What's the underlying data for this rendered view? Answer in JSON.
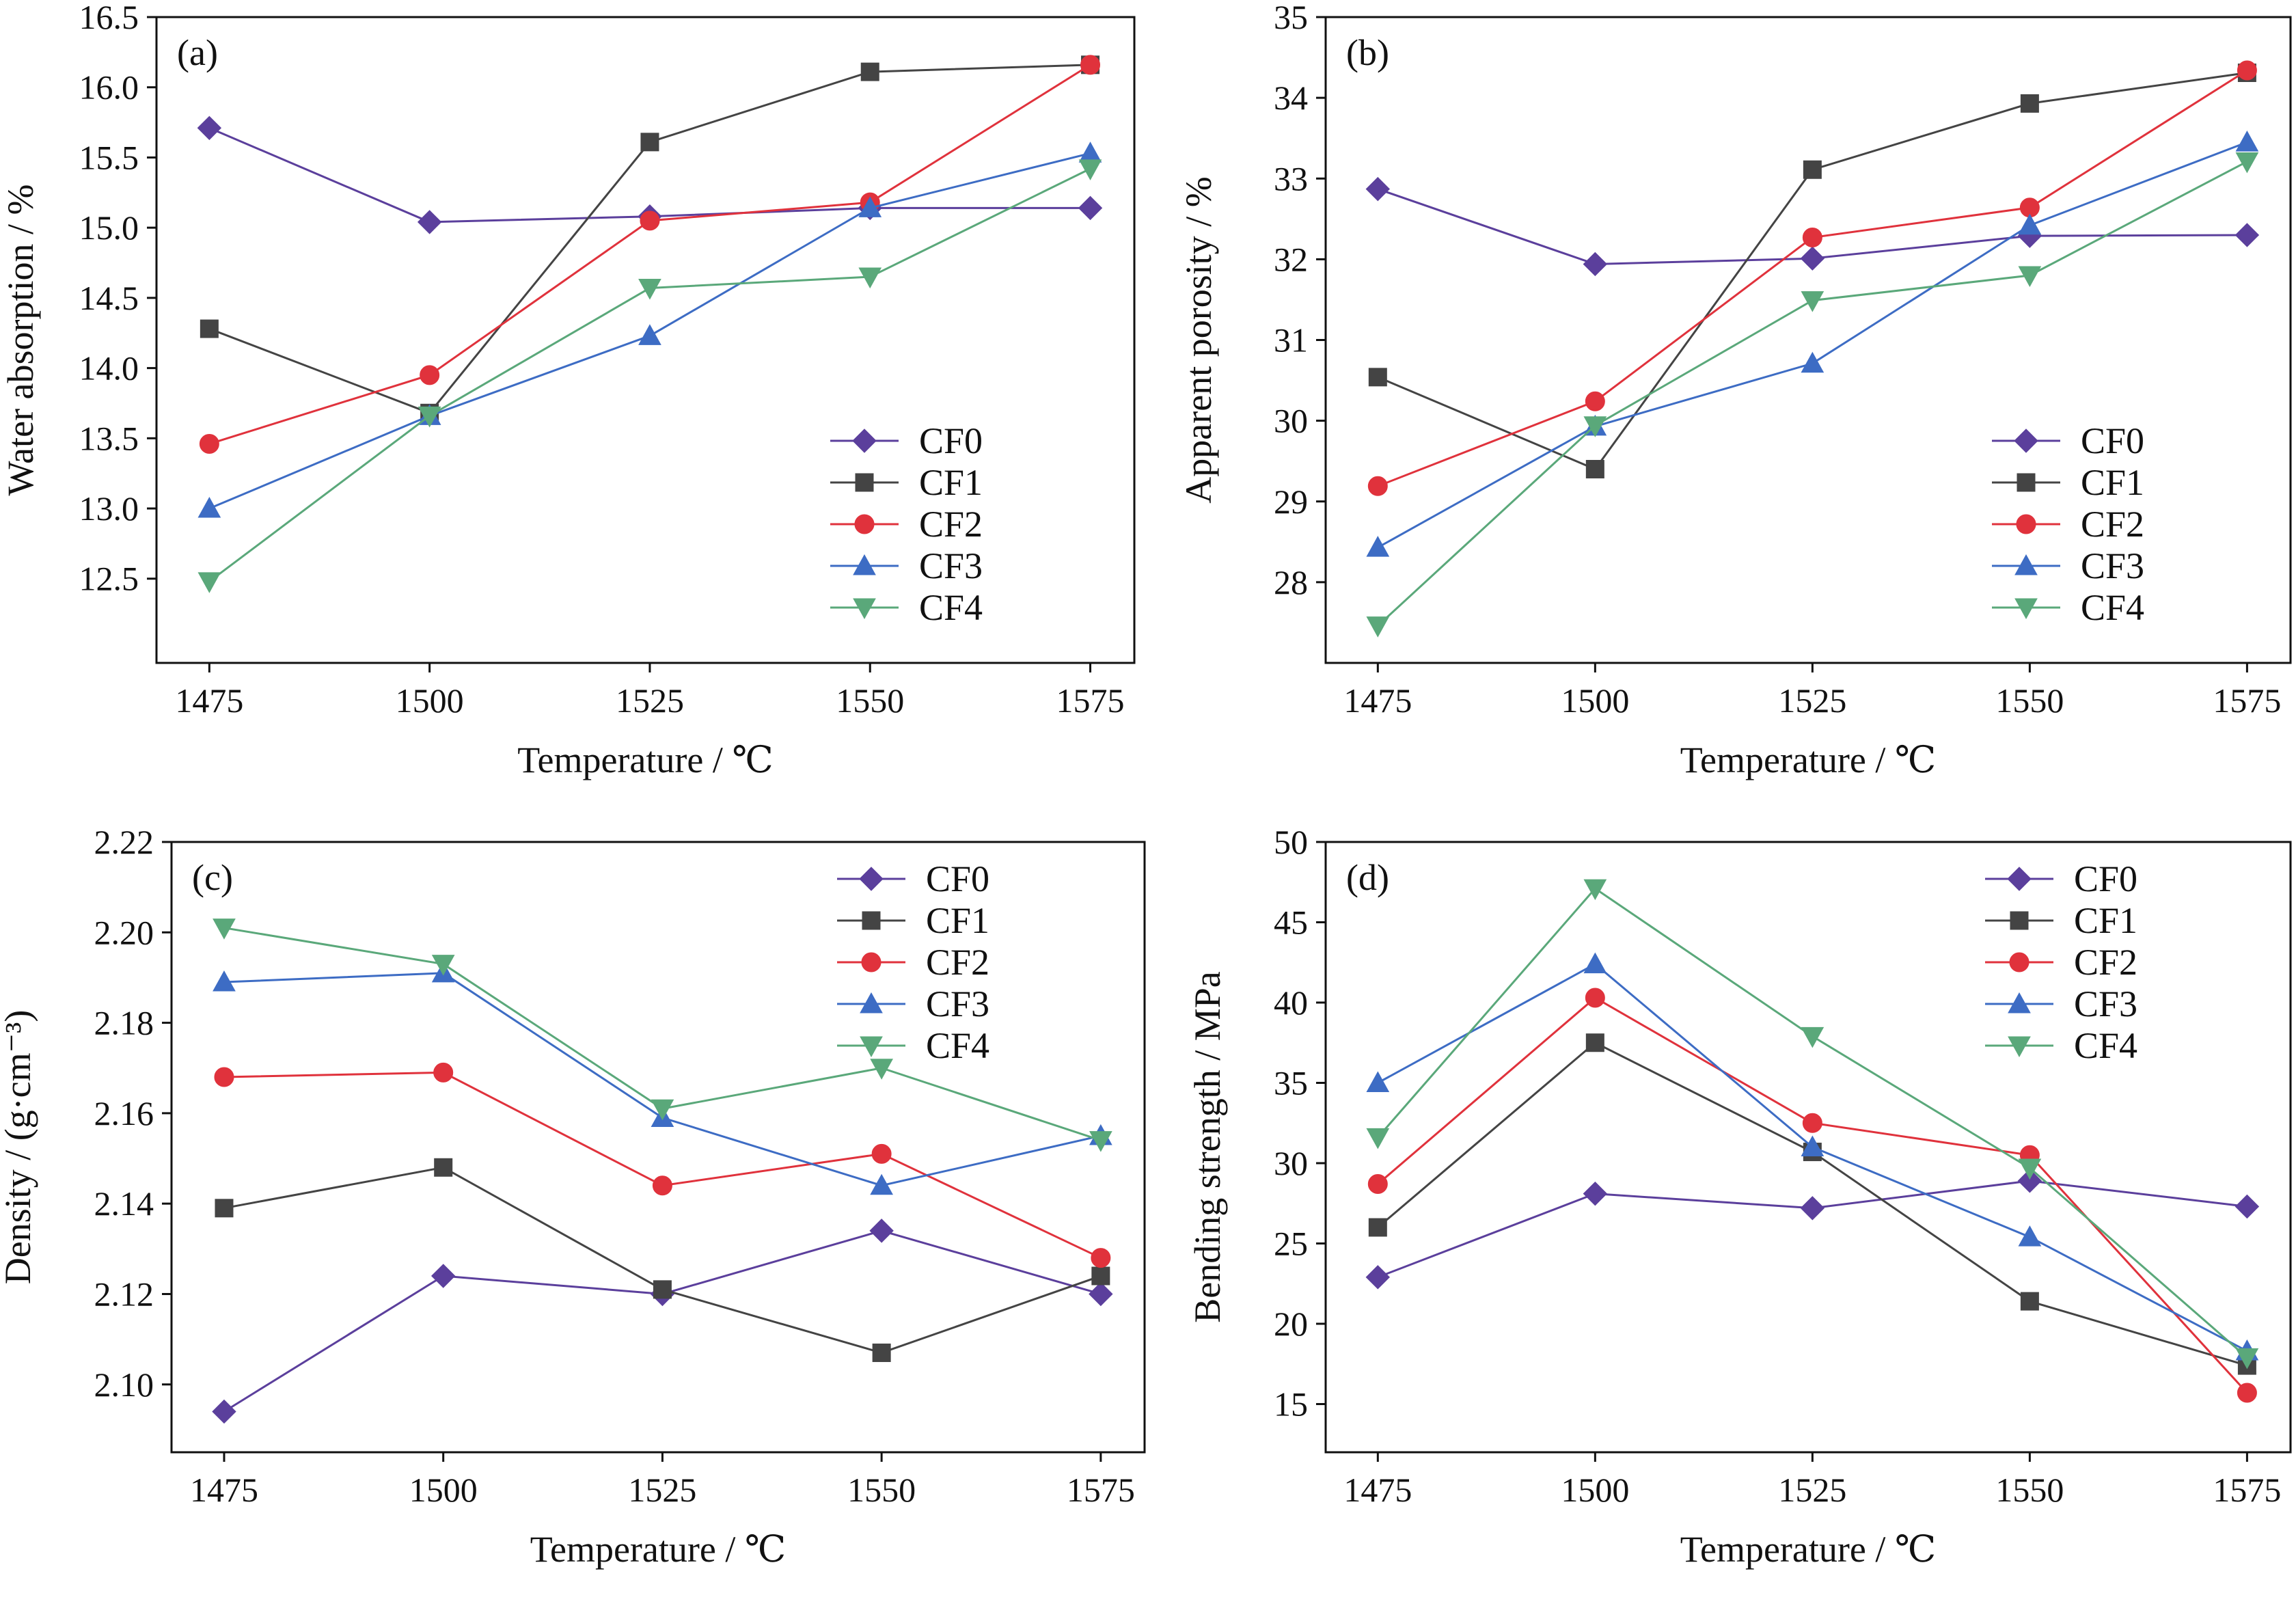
{
  "colors": {
    "CF0": "#5b3f9c",
    "CF1": "#444444",
    "CF2": "#e0323c",
    "CF3": "#3d6cc4",
    "CF4": "#5aa87a",
    "axis": "#111111",
    "background": "#ffffff"
  },
  "markers": {
    "CF0": "diamond",
    "CF1": "square",
    "CF2": "circle",
    "CF3": "triangle-up",
    "CF4": "triangle-down"
  },
  "chart_data": [
    {
      "panel_label": "(a)",
      "type": "line",
      "xlabel": "Temperature / ℃",
      "ylabel": "Water absorption / %",
      "x": [
        1475,
        1500,
        1525,
        1550,
        1575
      ],
      "xlim": [
        1469,
        1580
      ],
      "ylim": [
        11.9,
        16.5
      ],
      "yticks": [
        12.5,
        13.0,
        13.5,
        14.0,
        14.5,
        15.0,
        15.5,
        16.0,
        16.5
      ],
      "ytick_labels": [
        "12.5",
        "13.0",
        "13.5",
        "14.0",
        "14.5",
        "15.0",
        "15.5",
        "16.0",
        "16.5"
      ],
      "legend_position": "bottom-right",
      "series": [
        {
          "name": "CF0",
          "values": [
            15.71,
            15.04,
            15.08,
            15.14,
            15.14
          ]
        },
        {
          "name": "CF1",
          "values": [
            14.28,
            13.68,
            15.61,
            16.11,
            16.16
          ]
        },
        {
          "name": "CF2",
          "values": [
            13.46,
            13.95,
            15.05,
            15.18,
            16.16
          ]
        },
        {
          "name": "CF3",
          "values": [
            13.0,
            13.66,
            14.23,
            15.14,
            15.53
          ]
        },
        {
          "name": "CF4",
          "values": [
            12.48,
            13.66,
            14.57,
            14.65,
            15.42
          ]
        }
      ]
    },
    {
      "panel_label": "(b)",
      "type": "line",
      "xlabel": "Temperature / ℃",
      "ylabel": "Apparent porosity / %",
      "x": [
        1475,
        1500,
        1525,
        1550,
        1575
      ],
      "xlim": [
        1469,
        1580
      ],
      "ylim": [
        27.0,
        35.0
      ],
      "yticks": [
        28,
        29,
        30,
        31,
        32,
        33,
        34,
        35
      ],
      "ytick_labels": [
        "28",
        "29",
        "30",
        "31",
        "32",
        "33",
        "34",
        "35"
      ],
      "legend_position": "bottom-right",
      "series": [
        {
          "name": "CF0",
          "values": [
            32.87,
            31.94,
            32.01,
            32.29,
            32.3
          ]
        },
        {
          "name": "CF1",
          "values": [
            30.54,
            29.4,
            33.11,
            33.93,
            34.31
          ]
        },
        {
          "name": "CF2",
          "values": [
            29.19,
            30.24,
            32.27,
            32.64,
            34.34
          ]
        },
        {
          "name": "CF3",
          "values": [
            28.43,
            29.93,
            30.71,
            32.42,
            33.45
          ]
        },
        {
          "name": "CF4",
          "values": [
            27.46,
            29.94,
            31.49,
            31.8,
            33.21
          ]
        }
      ]
    },
    {
      "panel_label": "(c)",
      "type": "line",
      "xlabel": "Temperature / ℃",
      "ylabel": "Density / (g·cm⁻³)",
      "x": [
        1475,
        1500,
        1525,
        1550,
        1575
      ],
      "xlim": [
        1469,
        1580
      ],
      "ylim": [
        2.085,
        2.22
      ],
      "yticks": [
        2.1,
        2.12,
        2.14,
        2.16,
        2.18,
        2.2,
        2.22
      ],
      "ytick_labels": [
        "2.10",
        "2.12",
        "2.14",
        "2.16",
        "2.18",
        "2.20",
        "2.22"
      ],
      "legend_position": "top-right",
      "series": [
        {
          "name": "CF0",
          "values": [
            2.094,
            2.124,
            2.12,
            2.134,
            2.12
          ]
        },
        {
          "name": "CF1",
          "values": [
            2.139,
            2.148,
            2.121,
            2.107,
            2.124
          ]
        },
        {
          "name": "CF2",
          "values": [
            2.168,
            2.169,
            2.144,
            2.151,
            2.128
          ]
        },
        {
          "name": "CF3",
          "values": [
            2.189,
            2.191,
            2.159,
            2.144,
            2.155
          ]
        },
        {
          "name": "CF4",
          "values": [
            2.201,
            2.193,
            2.161,
            2.17,
            2.154
          ]
        }
      ]
    },
    {
      "panel_label": "(d)",
      "type": "line",
      "xlabel": "Temperature / ℃",
      "ylabel": "Bending strength / MPa",
      "x": [
        1475,
        1500,
        1525,
        1550,
        1575
      ],
      "xlim": [
        1469,
        1580
      ],
      "ylim": [
        12.0,
        50.0
      ],
      "yticks": [
        15,
        20,
        25,
        30,
        35,
        40,
        45,
        50
      ],
      "ytick_labels": [
        "15",
        "20",
        "25",
        "30",
        "35",
        "40",
        "45",
        "50"
      ],
      "legend_position": "top-right",
      "series": [
        {
          "name": "CF0",
          "values": [
            22.9,
            28.1,
            27.2,
            28.9,
            27.3
          ]
        },
        {
          "name": "CF1",
          "values": [
            26.0,
            37.5,
            30.7,
            21.4,
            17.4
          ]
        },
        {
          "name": "CF2",
          "values": [
            28.7,
            40.3,
            32.5,
            30.5,
            15.7
          ]
        },
        {
          "name": "CF3",
          "values": [
            35.0,
            42.4,
            31.0,
            25.4,
            18.3
          ]
        },
        {
          "name": "CF4",
          "values": [
            31.6,
            47.1,
            37.9,
            29.7,
            17.9
          ]
        }
      ]
    }
  ]
}
